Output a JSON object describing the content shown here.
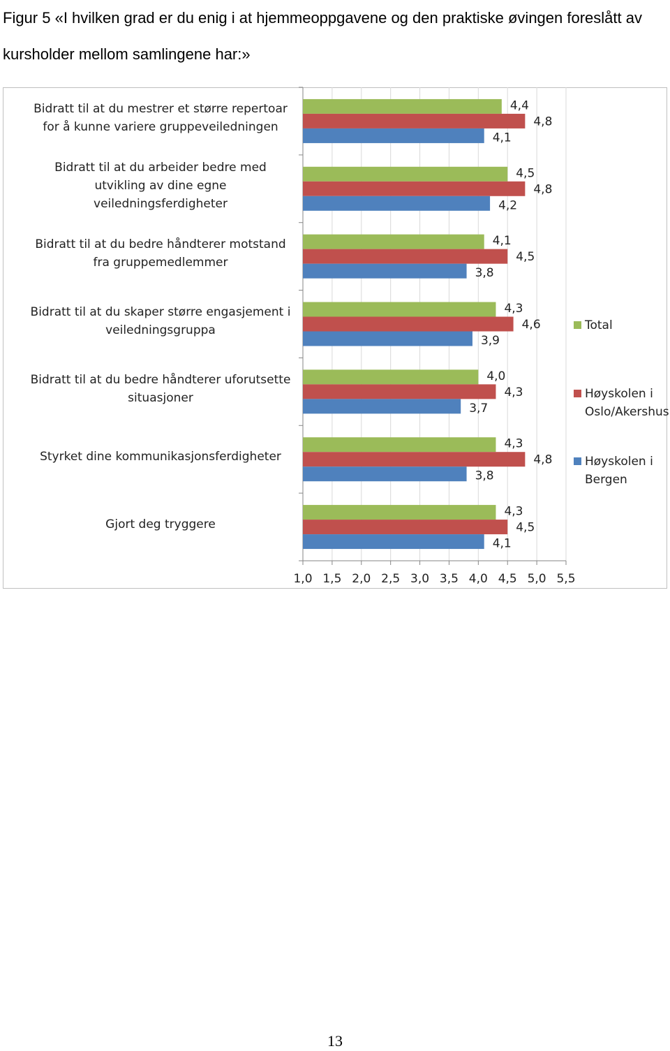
{
  "chart_data": {
    "type": "bar",
    "orientation": "horizontal",
    "title": "Figur 5 «I hvilken grad er du enig i at hjemmeoppgavene og den praktiske øvingen foreslått av kursholder mellom samlingene har:»",
    "categories": [
      "Bidratt til at du mestrer et større repertoar for å kunne variere gruppeveiledningen",
      "Bidratt til at du arbeider bedre med utvikling av dine egne veiledningsferdigheter",
      "Bidratt  til at du bedre håndterer motstand fra gruppemedlemmer",
      "Bidratt til at du skaper større engasjement i veiledningsgruppa",
      "Bidratt til at du bedre håndterer uforutsette situasjoner",
      "Styrket dine kommunikasjonsferdigheter",
      "Gjort deg tryggere"
    ],
    "series": [
      {
        "name": "Total",
        "color": "#9bbb59",
        "values": [
          4.4,
          4.5,
          4.1,
          4.3,
          4.0,
          4.3,
          4.3
        ],
        "value_labels": [
          "4,4",
          "4,5",
          "4,1",
          "4,3",
          "4,0",
          "4,3",
          "4,3"
        ]
      },
      {
        "name": "Høyskolen i Oslo/Akershus",
        "color": "#c0504d",
        "values": [
          4.8,
          4.8,
          4.5,
          4.6,
          4.3,
          4.8,
          4.5
        ],
        "value_labels": [
          "4,8",
          "4,8",
          "4,5",
          "4,6",
          "4,3",
          "4,8",
          "4,5"
        ]
      },
      {
        "name": "Høyskolen i Bergen",
        "color": "#4f81bd",
        "values": [
          4.1,
          4.2,
          3.8,
          3.9,
          3.7,
          3.8,
          4.1
        ],
        "value_labels": [
          "4,1",
          "4,2",
          "3,8",
          "3,9",
          "3,7",
          "3,8",
          "4,1"
        ]
      }
    ],
    "xlim": [
      1.0,
      5.5
    ],
    "xticks": [
      {
        "value": 1.0,
        "label": "1,0"
      },
      {
        "value": 1.5,
        "label": "1,5"
      },
      {
        "value": 2.0,
        "label": "2,0"
      },
      {
        "value": 2.5,
        "label": "2,5"
      },
      {
        "value": 3.0,
        "label": "3,0"
      },
      {
        "value": 3.5,
        "label": "3,5"
      },
      {
        "value": 4.0,
        "label": "4,0"
      },
      {
        "value": 4.5,
        "label": "4,5"
      },
      {
        "value": 5.0,
        "label": "5,0"
      },
      {
        "value": 5.5,
        "label": "5,5"
      }
    ],
    "grid": true,
    "legend": "right"
  },
  "page_number": "13"
}
